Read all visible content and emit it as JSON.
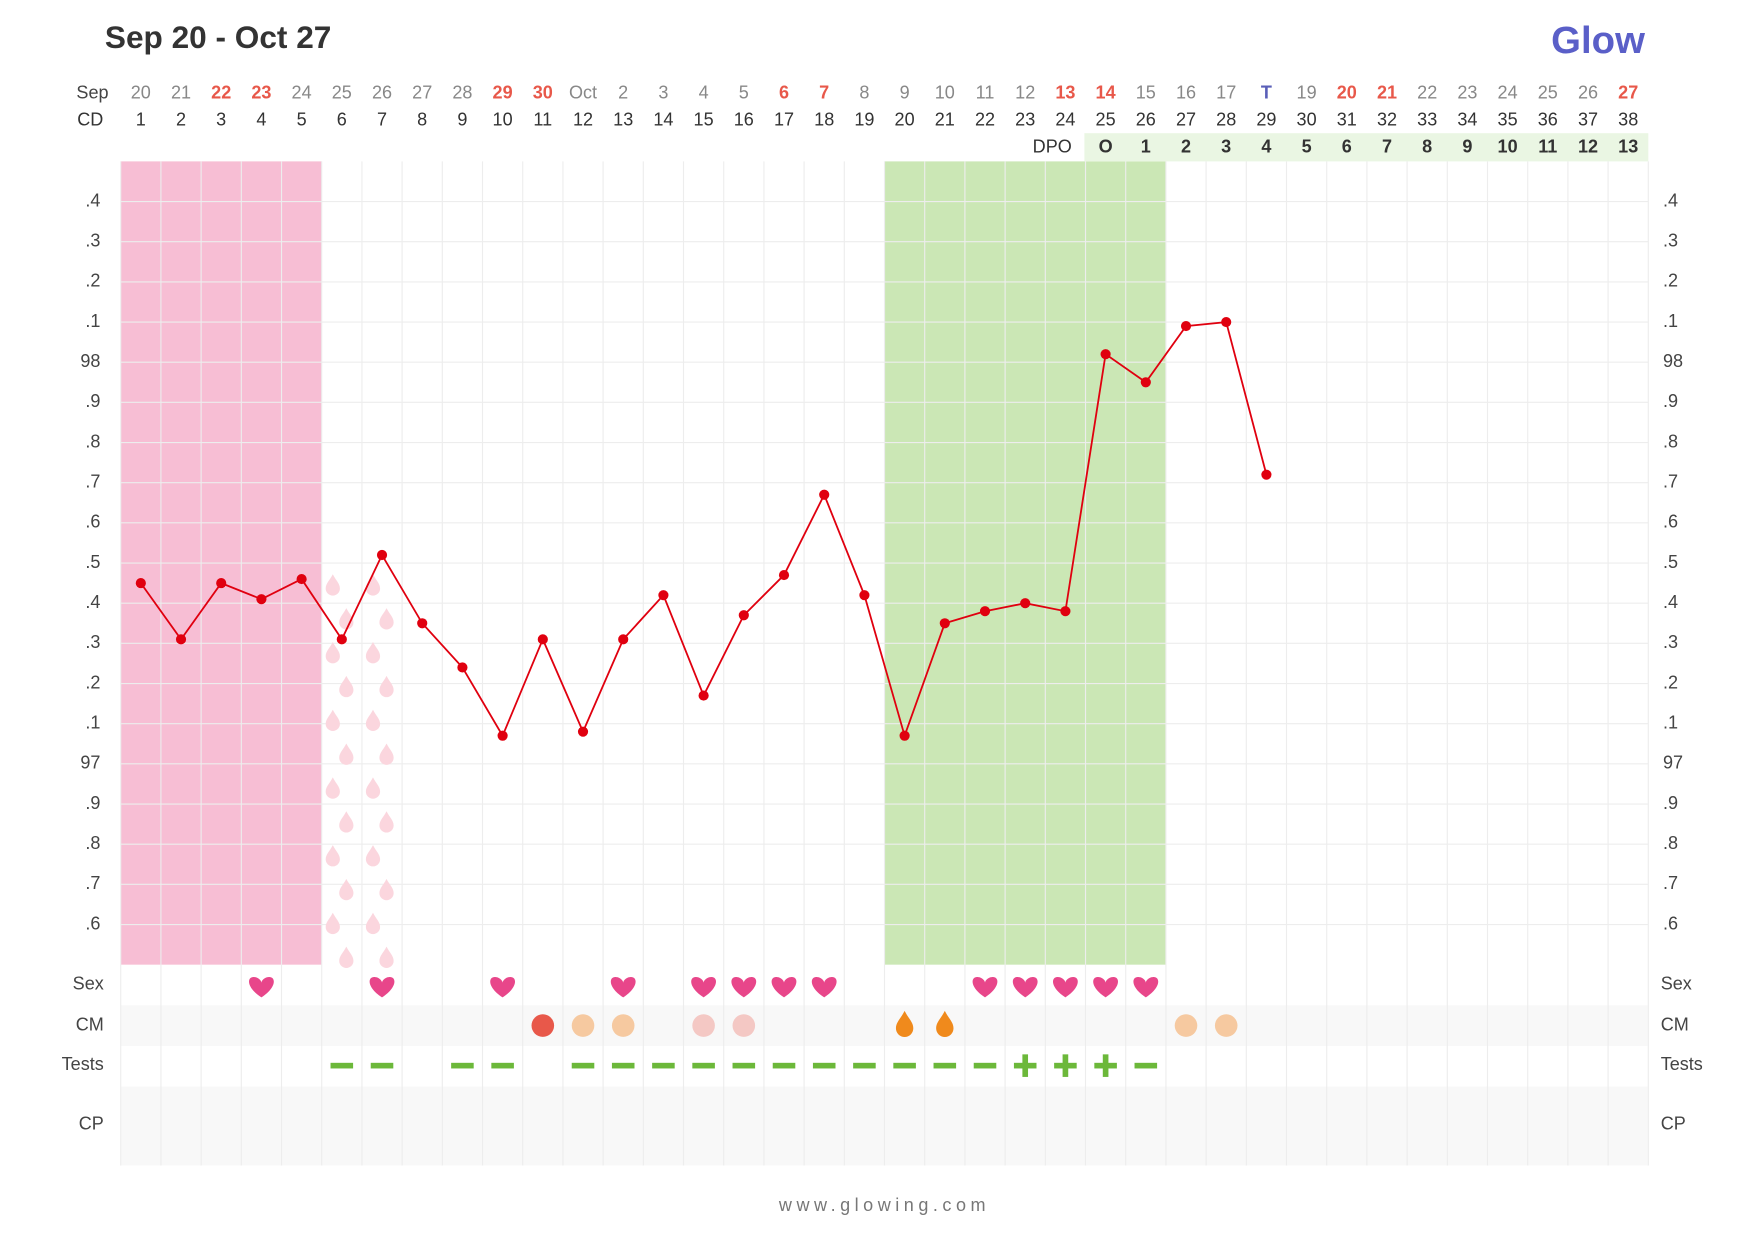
{
  "chart_data": {
    "type": "line",
    "title": "Sep 20 - Oct 27",
    "logo": "Glow",
    "footer": "www.glowing.com",
    "month_label": "Sep",
    "categories": [
      "20",
      "21",
      "22",
      "23",
      "24",
      "25",
      "26",
      "27",
      "28",
      "29",
      "30",
      "Oct",
      "2",
      "3",
      "4",
      "5",
      "6",
      "7",
      "8",
      "9",
      "10",
      "11",
      "12",
      "13",
      "14",
      "15",
      "16",
      "17",
      "T",
      "19",
      "20",
      "21",
      "22",
      "23",
      "24",
      "25",
      "26",
      "27"
    ],
    "weekend": [
      3,
      4,
      10,
      11,
      17,
      18,
      24,
      25,
      31,
      32,
      38
    ],
    "weekend_color": "#e8584a",
    "today": 29,
    "today_color": "#5a5fb8",
    "cd_label": "CD",
    "cd": [
      1,
      2,
      3,
      4,
      5,
      6,
      7,
      8,
      9,
      10,
      11,
      12,
      13,
      14,
      15,
      16,
      17,
      18,
      19,
      20,
      21,
      22,
      23,
      24,
      25,
      26,
      27,
      28,
      29,
      30,
      31,
      32,
      33,
      34,
      35,
      36,
      37,
      38
    ],
    "dpo_label": "DPO",
    "dpo_start": 25,
    "dpo": [
      "O",
      1,
      2,
      3,
      4,
      5,
      6,
      7,
      8,
      9,
      10,
      11,
      12,
      13
    ],
    "values": [
      97.45,
      97.31,
      97.45,
      97.41,
      97.46,
      97.31,
      97.52,
      97.35,
      97.24,
      97.07,
      97.31,
      97.08,
      97.31,
      97.42,
      97.17,
      97.37,
      97.47,
      97.67,
      97.42,
      97.07,
      97.35,
      97.38,
      97.4,
      97.38,
      98.02,
      97.95,
      98.09,
      98.1,
      97.72,
      null,
      null,
      null,
      null,
      null,
      null,
      null,
      null,
      null
    ],
    "color": "#e0000f",
    "ylim": [
      96.5,
      98.5
    ],
    "yticks": [
      {
        "value": 96.6,
        "label": ".6"
      },
      {
        "value": 96.7,
        "label": ".7"
      },
      {
        "value": 96.8,
        "label": ".8"
      },
      {
        "value": 96.9,
        "label": ".9"
      },
      97,
      {
        "value": 97.1,
        "label": ".1"
      },
      {
        "value": 97.2,
        "label": ".2"
      },
      {
        "value": 97.3,
        "label": ".3"
      },
      {
        "value": 97.4,
        "label": ".4"
      },
      {
        "value": 97.5,
        "label": ".5"
      },
      {
        "value": 97.6,
        "label": ".6"
      },
      {
        "value": 97.7,
        "label": ".7"
      },
      {
        "value": 97.8,
        "label": ".8"
      },
      {
        "value": 97.9,
        "label": ".9"
      },
      98,
      {
        "value": 98.1,
        "label": ".1"
      },
      {
        "value": 98.2,
        "label": ".2"
      },
      {
        "value": 98.3,
        "label": ".3"
      },
      {
        "value": 98.4,
        "label": ".4"
      }
    ],
    "grid": true,
    "period": [
      1,
      5
    ],
    "period_color": "#f7bed4",
    "spotting": [
      6,
      7
    ],
    "fertile": [
      20,
      26
    ],
    "fertile_color": "#cbe7b5",
    "rows": [
      "Sex",
      "CM",
      "Tests",
      "CP"
    ],
    "sex": [
      4,
      7,
      10,
      13,
      15,
      16,
      17,
      18,
      22,
      23,
      24,
      25,
      26
    ],
    "sex_color": "#e8468a",
    "cm": [
      {
        "day": 11,
        "color": "#e8584a"
      },
      {
        "day": 12,
        "color": "#f6c9a0"
      },
      {
        "day": 13,
        "color": "#f6c9a0"
      },
      {
        "day": 15,
        "color": "#f4c8c4"
      },
      {
        "day": 16,
        "color": "#f4c8c4"
      },
      {
        "day": 20,
        "color": "#f08a1c"
      },
      {
        "day": 21,
        "color": "#f08a1c"
      },
      {
        "day": 27,
        "color": "#f6c9a0"
      },
      {
        "day": 28,
        "color": "#f6c9a0"
      }
    ],
    "tests_negative": [
      6,
      7,
      9,
      10,
      12,
      13,
      14,
      15,
      16,
      17,
      18,
      19,
      20,
      21,
      22,
      26
    ],
    "tests_positive": [
      23,
      24,
      25
    ],
    "test_color": "#6cb83a"
  }
}
